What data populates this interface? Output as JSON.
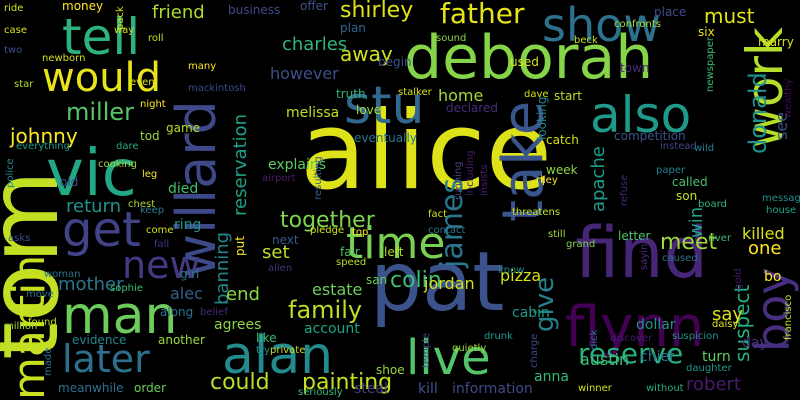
{
  "background_color": "#000000",
  "words": [
    {
      "text": "alice",
      "color": "#dde318"
    },
    {
      "text": "tom",
      "color": "#c2df23"
    },
    {
      "text": "deborah",
      "color": "#86d549"
    },
    {
      "text": "pat",
      "color": "#3b528b"
    },
    {
      "text": "find",
      "color": "#482677"
    },
    {
      "text": "vic",
      "color": "#22a884"
    },
    {
      "text": "tell",
      "color": "#2db27d"
    },
    {
      "text": "would",
      "color": "#e8e419"
    },
    {
      "text": "alan",
      "color": "#238a8d"
    },
    {
      "text": "later",
      "color": "#2d708e"
    },
    {
      "text": "man",
      "color": "#6ccd5a"
    },
    {
      "text": "flynn",
      "color": "#440154"
    },
    {
      "text": "live",
      "color": "#52c569"
    },
    {
      "text": "time",
      "color": "#7ad151"
    },
    {
      "text": "willard",
      "color": "#3e4989"
    },
    {
      "text": "stu",
      "color": "#31688e"
    },
    {
      "text": "take",
      "color": "#39558c"
    },
    {
      "text": "show",
      "color": "#2c728e"
    },
    {
      "text": "also",
      "color": "#1f9a8a"
    },
    {
      "text": "work",
      "color": "#b5de2b"
    },
    {
      "text": "martin",
      "color": "#c8e020"
    },
    {
      "text": "get",
      "color": "#404387"
    },
    {
      "text": "new",
      "color": "#443983"
    },
    {
      "text": "boy",
      "color": "#472f7d"
    },
    {
      "text": "family",
      "color": "#bddf26"
    },
    {
      "text": "reserve",
      "color": "#29af7f"
    },
    {
      "text": "painting",
      "color": "#c5e021"
    },
    {
      "text": "could",
      "color": "#b8de29"
    },
    {
      "text": "meet",
      "color": "#a0da39"
    },
    {
      "text": "donald",
      "color": "#20928c"
    },
    {
      "text": "father",
      "color": "#e5e419"
    },
    {
      "text": "shirley",
      "color": "#dde318"
    },
    {
      "text": "miller",
      "color": "#56c667"
    },
    {
      "text": "james",
      "color": "#2a768e"
    },
    {
      "text": "give",
      "color": "#26818e"
    },
    {
      "text": "colin",
      "color": "#3dbc74"
    },
    {
      "text": "johnny",
      "color": "#fde725"
    },
    {
      "text": "away",
      "color": "#d0e11c"
    },
    {
      "text": "charles",
      "color": "#31b57b"
    },
    {
      "text": "together",
      "color": "#7fd34e"
    },
    {
      "text": "return",
      "color": "#1f948c"
    },
    {
      "text": "banning",
      "color": "#24878e"
    },
    {
      "text": "reservation",
      "color": "#1fa187"
    },
    {
      "text": "robert",
      "color": "#481b6d"
    },
    {
      "text": "suspect",
      "color": "#26ad81"
    },
    {
      "text": "apache",
      "color": "#1e9c89"
    },
    {
      "text": "mother",
      "color": "#2a778e"
    },
    {
      "text": "friend",
      "color": "#addc30"
    },
    {
      "text": "must",
      "color": "#e2e418"
    },
    {
      "text": "jordan",
      "color": "#d2e21b"
    },
    {
      "text": "austin",
      "color": "#3fbc73"
    },
    {
      "text": "however",
      "color": "#3d4e8a"
    },
    {
      "text": "home",
      "color": "#a2da37"
    },
    {
      "text": "end",
      "color": "#8bd646"
    },
    {
      "text": "set",
      "color": "#bddf26"
    },
    {
      "text": "alec",
      "color": "#355f8d"
    },
    {
      "text": "estate",
      "color": "#6ece58"
    },
    {
      "text": "one",
      "color": "#fde725"
    },
    {
      "text": "see",
      "color": "#3b528b"
    },
    {
      "text": "say",
      "color": "#dae319"
    },
    {
      "text": "win",
      "color": "#20a486"
    },
    {
      "text": "killed",
      "color": "#d8e219"
    },
    {
      "text": "pizza",
      "color": "#d5e21a"
    },
    {
      "text": "melissa",
      "color": "#c0df25"
    },
    {
      "text": "explains",
      "color": "#5ec962"
    },
    {
      "text": "anna",
      "color": "#35b779"
    },
    {
      "text": "account",
      "color": "#20a386"
    },
    {
      "text": "agrees",
      "color": "#8bd646"
    },
    {
      "text": "cabin",
      "color": "#1e9c89"
    },
    {
      "text": "dollar",
      "color": "#21908d"
    },
    {
      "text": "steal",
      "color": "#433e85"
    },
    {
      "text": "kill",
      "color": "#3a548c"
    },
    {
      "text": "information",
      "color": "#3e4a89"
    },
    {
      "text": "evidence",
      "color": "#25858e"
    },
    {
      "text": "another",
      "color": "#9dd93b"
    },
    {
      "text": "chief",
      "color": "#2c728e"
    },
    {
      "text": "turn",
      "color": "#63cb5f"
    },
    {
      "text": "left",
      "color": "#b2dd2d"
    },
    {
      "text": "fair",
      "color": "#4ac16d"
    },
    {
      "text": "san",
      "color": "#6ccd5a"
    },
    {
      "text": "next",
      "color": "#38598c"
    },
    {
      "text": "ring",
      "color": "#1f958b"
    },
    {
      "text": "died",
      "color": "#44bf70"
    },
    {
      "text": "girl",
      "color": "#2b748e"
    },
    {
      "text": "along",
      "color": "#2c718e"
    },
    {
      "text": "put",
      "color": "#fde725"
    },
    {
      "text": "day",
      "color": "#453581"
    },
    {
      "text": "letter",
      "color": "#52c569"
    },
    {
      "text": "son",
      "color": "#c5e021"
    },
    {
      "text": "called",
      "color": "#48c16e"
    },
    {
      "text": "catch",
      "color": "#d0e11c"
    },
    {
      "text": "start",
      "color": "#b8de29"
    },
    {
      "text": "looking",
      "color": "#23888e"
    },
    {
      "text": "week",
      "color": "#8fd744"
    },
    {
      "text": "love",
      "color": "#a8db34"
    },
    {
      "text": "game",
      "color": "#b5de2b"
    },
    {
      "text": "tod",
      "color": "#9bd93c"
    },
    {
      "text": "old",
      "color": "#3d4d8a"
    },
    {
      "text": "like",
      "color": "#3bbb75"
    },
    {
      "text": "shoe",
      "color": "#95d840"
    },
    {
      "text": "meanwhile",
      "color": "#2d708e"
    },
    {
      "text": "order",
      "color": "#6ccd5a"
    },
    {
      "text": "wait",
      "color": "#27ad81"
    },
    {
      "text": "found",
      "color": "#c5e021"
    },
    {
      "text": "move",
      "color": "#2a788e"
    },
    {
      "text": "sophie",
      "color": "#3dbc74"
    },
    {
      "text": "woman",
      "color": "#2c738e"
    },
    {
      "text": "come",
      "color": "#d2e21b"
    },
    {
      "text": "cooking",
      "color": "#a2da37"
    },
    {
      "text": "chest",
      "color": "#addc30"
    },
    {
      "text": "truth",
      "color": "#31b57b"
    },
    {
      "text": "leg",
      "color": "#fde725"
    },
    {
      "text": "stalker",
      "color": "#d8e219"
    },
    {
      "text": "drunk",
      "color": "#1e9b8a"
    },
    {
      "text": "speed",
      "color": "#b8de29"
    },
    {
      "text": "grand",
      "color": "#7cd250"
    },
    {
      "text": "still",
      "color": "#a0da39"
    },
    {
      "text": "eventually",
      "color": "#2a778e"
    },
    {
      "text": "declared",
      "color": "#472d7b"
    },
    {
      "text": "resulting",
      "color": "#355e8d"
    },
    {
      "text": "running",
      "color": "#424186"
    },
    {
      "text": "including",
      "color": "#481a6c"
    },
    {
      "text": "insists",
      "color": "#482173"
    },
    {
      "text": "competition",
      "color": "#3b528b"
    },
    {
      "text": "refuse",
      "color": "#482475"
    },
    {
      "text": "instead",
      "color": "#404688"
    },
    {
      "text": "dave",
      "color": "#d2e21b"
    },
    {
      "text": "used",
      "color": "#dae319"
    },
    {
      "text": "offer",
      "color": "#3b528b"
    },
    {
      "text": "plan",
      "color": "#32658e"
    },
    {
      "text": "begin",
      "color": "#3a548c"
    },
    {
      "text": "business",
      "color": "#3e4a89"
    },
    {
      "text": "money",
      "color": "#fde725"
    },
    {
      "text": "place",
      "color": "#3e4c8a"
    },
    {
      "text": "six",
      "color": "#e5e419"
    },
    {
      "text": "marry",
      "color": "#d5e21a"
    },
    {
      "text": "town",
      "color": "#482878"
    },
    {
      "text": "paper",
      "color": "#26818e"
    },
    {
      "text": "message",
      "color": "#21918c"
    },
    {
      "text": "house",
      "color": "#20a386"
    },
    {
      "text": "river",
      "color": "#3aba76"
    },
    {
      "text": "caused",
      "color": "#2e6f8e"
    },
    {
      "text": "gold",
      "color": "#48186a"
    },
    {
      "text": "francisco",
      "color": "#c0df25"
    },
    {
      "text": "bo",
      "color": "#fde725"
    },
    {
      "text": "wealthy",
      "color": "#46085c"
    },
    {
      "text": "daughter",
      "color": "#1f958b"
    },
    {
      "text": "without",
      "color": "#26ad81"
    },
    {
      "text": "winner",
      "color": "#d5e21a"
    },
    {
      "text": "discover",
      "color": "#481c6e"
    },
    {
      "text": "suspicion",
      "color": "#20928c"
    },
    {
      "text": "daisy",
      "color": "#dde318"
    },
    {
      "text": "saying",
      "color": "#46307e"
    },
    {
      "text": "dick",
      "color": "#2a778e"
    },
    {
      "text": "quietly",
      "color": "#a5db36"
    },
    {
      "text": "charge",
      "color": "#3e4989"
    },
    {
      "text": "temple",
      "color": "#3e4a89"
    },
    {
      "text": "board",
      "color": "#35b779"
    },
    {
      "text": "wild",
      "color": "#25848e"
    },
    {
      "text": "newspaper",
      "color": "#40bd72"
    },
    {
      "text": "confronts",
      "color": "#a5db36"
    },
    {
      "text": "beck",
      "color": "#c2df23"
    },
    {
      "text": "sound",
      "color": "#8bd646"
    },
    {
      "text": "riley",
      "color": "#fde725"
    },
    {
      "text": "threatens",
      "color": "#c5e021"
    },
    {
      "text": "contact",
      "color": "#2c738e"
    },
    {
      "text": "fact",
      "color": "#d0e11c"
    },
    {
      "text": "know",
      "color": "#24878e"
    },
    {
      "text": "top",
      "color": "#fde725"
    },
    {
      "text": "pledge",
      "color": "#d0e11c"
    },
    {
      "text": "private",
      "color": "#c2df23"
    },
    {
      "text": "seriously",
      "color": "#3aba76"
    },
    {
      "text": "airport",
      "color": "#481c6e"
    },
    {
      "text": "allen",
      "color": "#46327e"
    },
    {
      "text": "try",
      "color": "#20928c"
    },
    {
      "text": "belief",
      "color": "#482878"
    },
    {
      "text": "police",
      "color": "#24868e"
    },
    {
      "text": "case",
      "color": "#dde318"
    },
    {
      "text": "ride",
      "color": "#d5e21a"
    },
    {
      "text": "two",
      "color": "#3d4e8a"
    },
    {
      "text": "newborn",
      "color": "#d2e21b"
    },
    {
      "text": "star",
      "color": "#b8de29"
    },
    {
      "text": "even",
      "color": "#dae319"
    },
    {
      "text": "night",
      "color": "#fde725"
    },
    {
      "text": "million",
      "color": "#a5db36"
    },
    {
      "text": "made",
      "color": "#2c728e"
    },
    {
      "text": "asks",
      "color": "#3b528b"
    },
    {
      "text": "keep",
      "color": "#2a778e"
    },
    {
      "text": "fall",
      "color": "#443983"
    },
    {
      "text": "dare",
      "color": "#26ad81"
    },
    {
      "text": "everything",
      "color": "#1f9a8a"
    },
    {
      "text": "pack",
      "color": "#d8e219"
    },
    {
      "text": "way",
      "color": "#d0e11c"
    },
    {
      "text": "roll",
      "color": "#c8e020"
    },
    {
      "text": "many",
      "color": "#fde725"
    },
    {
      "text": "mackintosh",
      "color": "#3e4989"
    }
  ]
}
